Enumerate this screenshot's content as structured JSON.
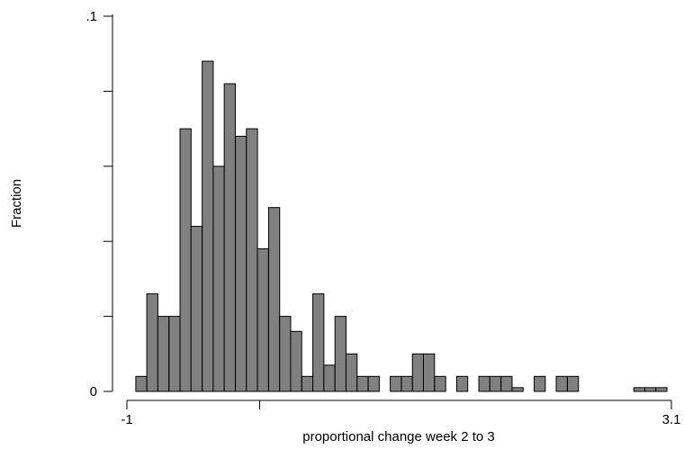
{
  "chart_data": {
    "type": "bar",
    "subtype": "histogram",
    "xlabel": "proportional change week 2 to 3",
    "ylabel": "Fraction",
    "x_ticks": [
      {
        "value": -1,
        "label": "-1"
      },
      {
        "value": 3.1,
        "label": "3.1"
      }
    ],
    "x_minor_ticks": [
      0
    ],
    "y_ticks": [
      {
        "value": 0,
        "label": "0"
      },
      {
        "value": 0.1,
        "label": ".1"
      }
    ],
    "y_minor_ticks": [
      0.02,
      0.04,
      0.06,
      0.08
    ],
    "xlim": [
      -1,
      3.1
    ],
    "ylim": [
      0,
      0.1
    ],
    "bin_width": 0.0833,
    "bin_starts": [
      -0.933,
      -0.85,
      -0.767,
      -0.683,
      -0.6,
      -0.517,
      -0.433,
      -0.35,
      -0.267,
      -0.183,
      -0.1,
      -0.017,
      0.067,
      0.15,
      0.233,
      0.317,
      0.4,
      0.483,
      0.567,
      0.65,
      0.733,
      0.817,
      0.9,
      0.983,
      1.067,
      1.15,
      1.233,
      1.317,
      1.4,
      1.483,
      1.567,
      1.65,
      1.733,
      1.817,
      1.9,
      1.983,
      2.067,
      2.15,
      2.233,
      2.317,
      2.4,
      2.483,
      2.567,
      2.65,
      2.733,
      2.817,
      2.9,
      2.983
    ],
    "values": [
      0.004,
      0.026,
      0.02,
      0.02,
      0.07,
      0.044,
      0.088,
      0.06,
      0.082,
      0.068,
      0.07,
      0.038,
      0.049,
      0.02,
      0.016,
      0.004,
      0.026,
      0.007,
      0.02,
      0.01,
      0.004,
      0.004,
      0,
      0.004,
      0.004,
      0.01,
      0.01,
      0.004,
      0,
      0.004,
      0,
      0.004,
      0.004,
      0.004,
      0.001,
      0,
      0.004,
      0,
      0.004,
      0.004,
      0,
      0,
      0,
      0,
      0,
      0.001,
      0.001,
      0.001
    ],
    "bar_color": "#808080",
    "bar_stroke": "#000000",
    "grid": false,
    "legend": "none"
  }
}
